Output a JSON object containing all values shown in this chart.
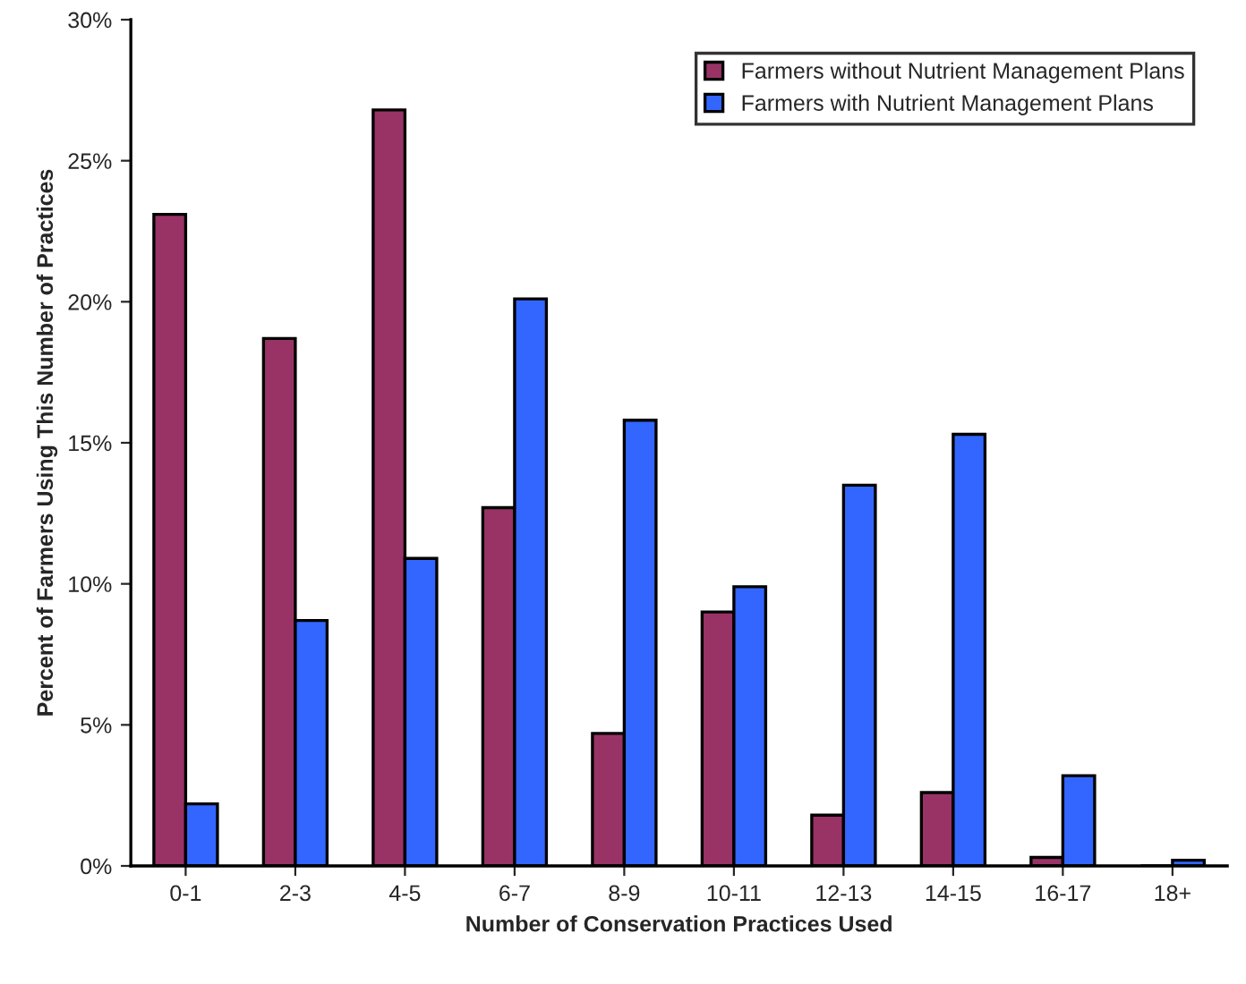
{
  "chart_data": {
    "type": "bar",
    "xlabel": "Number of Conservation Practices Used",
    "ylabel": "Percent of Farmers Using This Number of Practices",
    "categories": [
      "0-1",
      "2-3",
      "4-5",
      "6-7",
      "8-9",
      "10-11",
      "12-13",
      "14-15",
      "16-17",
      "18+"
    ],
    "series": [
      {
        "name": "Farmers without Nutrient Management Plans",
        "color": "#993366",
        "values": [
          23.1,
          18.7,
          26.8,
          12.7,
          4.7,
          9.0,
          1.8,
          2.6,
          0.3,
          0
        ]
      },
      {
        "name": "Farmers with Nutrient Management Plans",
        "color": "#3366ff",
        "values": [
          2.2,
          8.7,
          10.9,
          20.1,
          15.8,
          9.9,
          13.5,
          15.3,
          3.2,
          0.2
        ]
      }
    ],
    "ylim": [
      0,
      30
    ],
    "yticks": [
      {
        "value": 0,
        "label": "0%"
      },
      {
        "value": 5,
        "label": "5%"
      },
      {
        "value": 10,
        "label": "10%"
      },
      {
        "value": 15,
        "label": "15%"
      },
      {
        "value": 20,
        "label": "20%"
      },
      {
        "value": 25,
        "label": "25%"
      },
      {
        "value": 30,
        "label": "30%"
      }
    ],
    "grid": false,
    "legend": "top right"
  }
}
